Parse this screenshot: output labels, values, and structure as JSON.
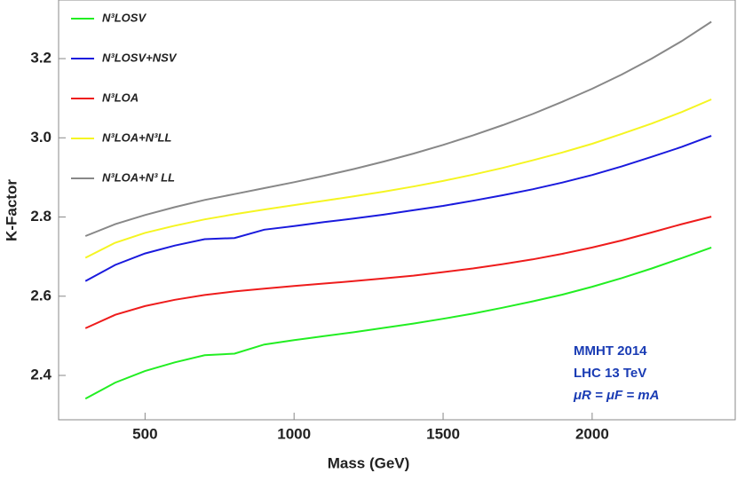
{
  "chart_data": {
    "type": "line",
    "x_label": "Mass (GeV)",
    "y_label": "K-Factor",
    "x": [
      300,
      400,
      500,
      600,
      700,
      800,
      900,
      1000,
      1100,
      1200,
      1300,
      1400,
      1500,
      1600,
      1700,
      1800,
      1900,
      2000,
      2100,
      2200,
      2300,
      2400
    ],
    "series": [
      {
        "name": "N³LOSV",
        "color": "#22ee22",
        "values": [
          2.341,
          2.382,
          2.411,
          2.433,
          2.451,
          2.455,
          2.478,
          2.489,
          2.499,
          2.509,
          2.52,
          2.531,
          2.543,
          2.556,
          2.571,
          2.587,
          2.604,
          2.624,
          2.646,
          2.67,
          2.696,
          2.723
        ]
      },
      {
        "name": "N³LOSV+NSV",
        "color": "#1a1add",
        "values": [
          2.638,
          2.679,
          2.708,
          2.728,
          2.744,
          2.747,
          2.768,
          2.777,
          2.787,
          2.796,
          2.806,
          2.817,
          2.828,
          2.841,
          2.855,
          2.87,
          2.887,
          2.906,
          2.928,
          2.952,
          2.977,
          3.005
        ]
      },
      {
        "name": "N³LOA",
        "color": "#ee1c1c",
        "values": [
          2.519,
          2.553,
          2.575,
          2.591,
          2.603,
          2.612,
          2.619,
          2.626,
          2.632,
          2.638,
          2.645,
          2.652,
          2.661,
          2.67,
          2.681,
          2.693,
          2.707,
          2.723,
          2.741,
          2.761,
          2.782,
          2.801
        ]
      },
      {
        "name": "N³LOA+N³LL",
        "color": "#f5f522",
        "values": [
          2.697,
          2.735,
          2.76,
          2.778,
          2.794,
          2.807,
          2.819,
          2.83,
          2.841,
          2.852,
          2.864,
          2.877,
          2.891,
          2.907,
          2.924,
          2.943,
          2.963,
          2.985,
          3.01,
          3.036,
          3.065,
          3.097
        ]
      },
      {
        "name": "N³LOA+N³ LL",
        "color": "#888888",
        "values": [
          2.752,
          2.782,
          2.805,
          2.825,
          2.843,
          2.858,
          2.873,
          2.888,
          2.904,
          2.921,
          2.94,
          2.96,
          2.982,
          3.006,
          3.032,
          3.06,
          3.091,
          3.124,
          3.16,
          3.2,
          3.244,
          3.293
        ]
      }
    ],
    "annotations": [
      "MMHT 2014",
      "LHC 13 TeV",
      "μR = μF = mA"
    ],
    "xlim": [
      210,
      2480
    ],
    "xticks": [
      500,
      1000,
      1500,
      2000
    ],
    "ylim": [
      2.288,
      3.348
    ],
    "yticks": [
      2.4,
      2.6,
      2.8,
      {
        "value": 3,
        "label": "3.0"
      },
      3.2
    ],
    "legend": "upper left"
  }
}
